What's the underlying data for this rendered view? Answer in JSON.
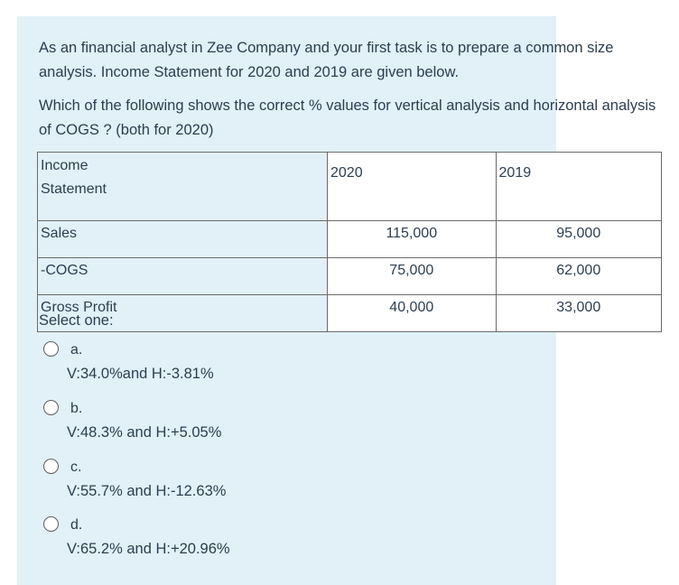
{
  "question": {
    "paragraph1": "As an financial analyst in Zee Company and your first task is to prepare a common size analysis.  Income Statement for 2020 and 2019 are given below.",
    "paragraph2": "Which of the following shows the correct % values for vertical analysis and horizontal analysis of COGS ? (both for 2020)"
  },
  "table": {
    "header": {
      "label": "Income Statement",
      "col2020": "2020",
      "col2019": "2019"
    },
    "rows": [
      {
        "label": "Sales",
        "v2020": "115,000",
        "v2019": "95,000"
      },
      {
        "label": "-COGS",
        "v2020": "75,000",
        "v2019": "62,000"
      },
      {
        "label": "Gross Profit",
        "v2020": "40,000",
        "v2019": "33,000"
      }
    ]
  },
  "answers": {
    "prompt": "Select one:",
    "options": [
      {
        "letter": "a.",
        "text": "V:34.0%and H:-3.81%"
      },
      {
        "letter": "b.",
        "text": "V:48.3% and H:+5.05%"
      },
      {
        "letter": "c.",
        "text": "V:55.7% and H:-12.63%"
      },
      {
        "letter": "d.",
        "text": "V:65.2% and H:+20.96%"
      }
    ]
  }
}
